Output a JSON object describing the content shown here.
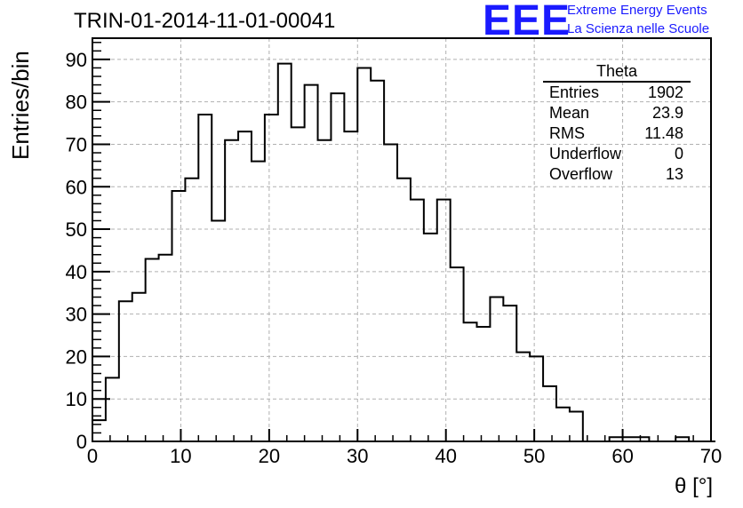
{
  "header": {
    "run_title": "TRIN-01-2014-11-01-00041",
    "logo_text": "EEE",
    "logo_line1": "Extreme Energy Events",
    "logo_line2": "La Scienza nelle Scuole"
  },
  "stats": {
    "title": "Theta",
    "rows": [
      {
        "label": "Entries",
        "value": "1902"
      },
      {
        "label": "Mean",
        "value": "23.9"
      },
      {
        "label": "RMS",
        "value": "11.48"
      },
      {
        "label": "Underflow",
        "value": "0"
      },
      {
        "label": "Overflow",
        "value": "13"
      }
    ]
  },
  "colors": {
    "line": "#000000",
    "grid": "#b0b0b0",
    "logo": "#1a1aff"
  },
  "chart_data": {
    "type": "histogram",
    "title": "TRIN-01-2014-11-01-00041",
    "xlabel": "θ [°]",
    "ylabel": "Entries/bin",
    "xlim": [
      0,
      70
    ],
    "ylim": [
      0,
      95
    ],
    "bin_width": 1.5,
    "bin_start": 0,
    "xticks": [
      0,
      10,
      20,
      30,
      40,
      50,
      60,
      70
    ],
    "yticks": [
      0,
      10,
      20,
      30,
      40,
      50,
      60,
      70,
      80,
      90
    ],
    "grid": true,
    "legend": "top-right",
    "values": [
      5,
      15,
      33,
      35,
      43,
      44,
      59,
      62,
      77,
      52,
      71,
      73,
      66,
      77,
      89,
      74,
      84,
      71,
      82,
      73,
      88,
      85,
      70,
      62,
      57,
      49,
      57,
      41,
      28,
      27,
      34,
      32,
      21,
      20,
      13,
      8,
      7,
      0,
      0,
      1,
      1,
      1,
      0,
      0,
      1,
      0,
      0
    ]
  }
}
